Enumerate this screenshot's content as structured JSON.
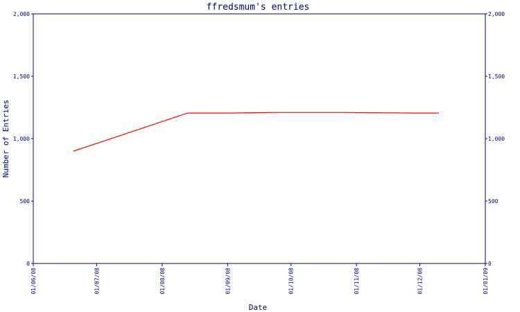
{
  "colors": {
    "axis": "#000080",
    "line": "#ff0000",
    "background": "#ffffff"
  },
  "chart_data": {
    "type": "line",
    "title": "ffredsmum's entries",
    "xlabel": "Date",
    "ylabel": "Number of Entries",
    "ylim": [
      0,
      2000
    ],
    "y_ticks": [
      0,
      500,
      1000,
      1500,
      2000
    ],
    "y_tick_labels": [
      "0",
      "500",
      "1,000",
      "1,500",
      "2,000"
    ],
    "x_tick_labels": [
      "01/06/08",
      "01/07/08",
      "01/08/08",
      "01/09/08",
      "01/10/08",
      "01/11/08",
      "01/12/08",
      "01/01/09"
    ],
    "series": [
      {
        "x": [
          "2008-06-20",
          "2008-08-13",
          "2008-08-31",
          "2008-09-23",
          "2008-10-25",
          "2008-11-30",
          "2008-12-10"
        ],
        "y": [
          900,
          1205,
          1205,
          1210,
          1210,
          1205,
          1205
        ]
      }
    ],
    "grid": false,
    "right_axis": true
  }
}
